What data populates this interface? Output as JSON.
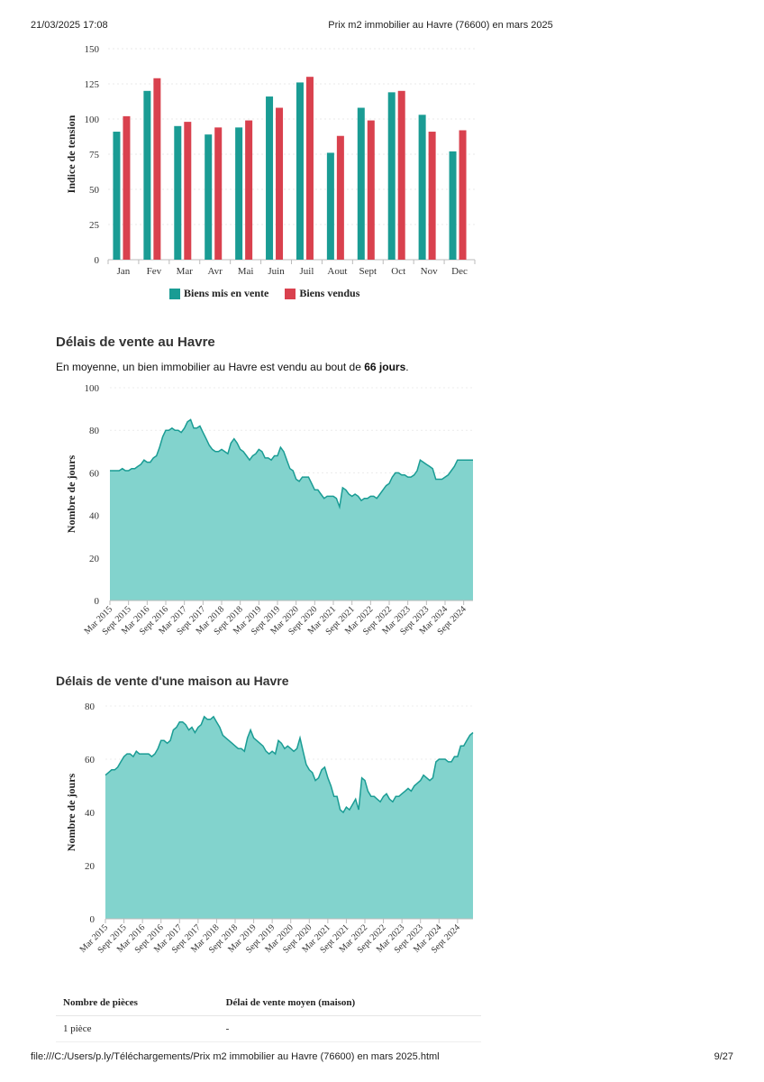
{
  "header": {
    "datetime": "21/03/2025 17:08",
    "title": "Prix m2 immobilier au Havre (76600) en mars 2025"
  },
  "footer": {
    "path": "file:///C:/Users/p.ly/Téléchargements/Prix m2 immobilier au Havre (76600) en mars 2025.html",
    "page": "9/27"
  },
  "section_delais": {
    "title": "Délais de vente au Havre",
    "text_before": "En moyenne, un bien immobilier au Havre est vendu au bout de ",
    "text_bold": "66 jours",
    "text_after": "."
  },
  "section_maison": {
    "title": "Délais de vente d'une maison au Havre"
  },
  "table": {
    "headers": [
      "Nombre de pièces",
      "Délai de vente moyen (maison)"
    ],
    "rows": [
      [
        "1 pièce",
        "-"
      ]
    ]
  },
  "legend": [
    {
      "label": "Biens mis en vente",
      "color": "#1a9c94"
    },
    {
      "label": "Biens vendus",
      "color": "#d9414e"
    }
  ],
  "chart_data": [
    {
      "type": "bar",
      "ylabel": "Indice de tension",
      "ylim": [
        0,
        150
      ],
      "yticks": [
        0,
        25,
        50,
        75,
        100,
        125,
        150
      ],
      "categories": [
        "Jan",
        "Fev",
        "Mar",
        "Avr",
        "Mai",
        "Juin",
        "Juil",
        "Aout",
        "Sept",
        "Oct",
        "Nov",
        "Dec"
      ],
      "series": [
        {
          "name": "Biens mis en vente",
          "color": "#1a9c94",
          "values": [
            91,
            120,
            95,
            89,
            94,
            116,
            126,
            76,
            108,
            119,
            103,
            77
          ]
        },
        {
          "name": "Biens vendus",
          "color": "#d9414e",
          "values": [
            102,
            129,
            98,
            94,
            99,
            108,
            130,
            88,
            99,
            120,
            91,
            92
          ]
        }
      ]
    },
    {
      "type": "area",
      "ylabel": "Nombre de jours",
      "ylim": [
        0,
        100
      ],
      "yticks": [
        0,
        20,
        40,
        60,
        80,
        100
      ],
      "color": "#1a9c94",
      "xticks": [
        "Mar 2015",
        "Sept 2015",
        "Mar 2016",
        "Sept 2016",
        "Mar 2017",
        "Sept 2017",
        "Mar 2018",
        "Sept 2018",
        "Mar 2019",
        "Sept 2019",
        "Mar 2020",
        "Sept 2020",
        "Mar 2021",
        "Sept 2021",
        "Mar 2022",
        "Sept 2022",
        "Mar 2023",
        "Sept 2023",
        "Mar 2024",
        "Sept 2024"
      ],
      "x": [
        "2015-03",
        "2015-04",
        "2015-05",
        "2015-06",
        "2015-07",
        "2015-08",
        "2015-09",
        "2015-10",
        "2015-11",
        "2015-12",
        "2016-01",
        "2016-02",
        "2016-03",
        "2016-04",
        "2016-05",
        "2016-06",
        "2016-07",
        "2016-08",
        "2016-09",
        "2016-10",
        "2016-11",
        "2016-12",
        "2017-01",
        "2017-02",
        "2017-03",
        "2017-04",
        "2017-05",
        "2017-06",
        "2017-07",
        "2017-08",
        "2017-09",
        "2017-10",
        "2017-11",
        "2017-12",
        "2018-01",
        "2018-02",
        "2018-03",
        "2018-04",
        "2018-05",
        "2018-06",
        "2018-07",
        "2018-08",
        "2018-09",
        "2018-10",
        "2018-11",
        "2018-12",
        "2019-01",
        "2019-02",
        "2019-03",
        "2019-04",
        "2019-05",
        "2019-06",
        "2019-07",
        "2019-08",
        "2019-09",
        "2019-10",
        "2019-11",
        "2019-12",
        "2020-01",
        "2020-02",
        "2020-03",
        "2020-04",
        "2020-05",
        "2020-06",
        "2020-07",
        "2020-08",
        "2020-09",
        "2020-10",
        "2020-11",
        "2020-12",
        "2021-01",
        "2021-02",
        "2021-03",
        "2021-04",
        "2021-05",
        "2021-06",
        "2021-07",
        "2021-08",
        "2021-09",
        "2021-10",
        "2021-11",
        "2021-12",
        "2022-01",
        "2022-02",
        "2022-03",
        "2022-04",
        "2022-05",
        "2022-06",
        "2022-07",
        "2022-08",
        "2022-09",
        "2022-10",
        "2022-11",
        "2022-12",
        "2023-01",
        "2023-02",
        "2023-03",
        "2023-04",
        "2023-05",
        "2023-06",
        "2023-07",
        "2023-08",
        "2023-09",
        "2023-10",
        "2023-11",
        "2023-12",
        "2024-01",
        "2024-02",
        "2024-03",
        "2024-04",
        "2024-05",
        "2024-06",
        "2024-07",
        "2024-08",
        "2024-09",
        "2024-10",
        "2024-11",
        "2024-12",
        "2025-01",
        "2025-02",
        "2025-03"
      ],
      "values": [
        61,
        61,
        61,
        61,
        62,
        61,
        61,
        62,
        62,
        63,
        64,
        66,
        65,
        65,
        67,
        68,
        72,
        77,
        80,
        80,
        81,
        80,
        80,
        79,
        81,
        84,
        85,
        81,
        81,
        82,
        79,
        76,
        73,
        71,
        70,
        70,
        71,
        70,
        69,
        74,
        76,
        74,
        71,
        70,
        68,
        66,
        68,
        69,
        71,
        70,
        67,
        67,
        66,
        68,
        68,
        72,
        70,
        66,
        62,
        61,
        57,
        56,
        58,
        58,
        58,
        55,
        52,
        52,
        50,
        48,
        49,
        49,
        49,
        48,
        44,
        53,
        52,
        50,
        49,
        50,
        49,
        47,
        48,
        48,
        49,
        49,
        48,
        50,
        52,
        54,
        55,
        58,
        60,
        60,
        59,
        59,
        58,
        58,
        59,
        61,
        66,
        65,
        64,
        63,
        62,
        57,
        57,
        57,
        58,
        59,
        61,
        63,
        66,
        66,
        66,
        66,
        66,
        66,
        66,
        66,
        66
      ],
      "n_shown": 118
    },
    {
      "type": "area",
      "ylabel": "Nombre de jours",
      "ylim": [
        0,
        80
      ],
      "yticks": [
        0,
        20,
        40,
        60,
        80
      ],
      "color": "#1a9c94",
      "xticks": [
        "Mar 2015",
        "Sept 2015",
        "Mar 2016",
        "Sept 2016",
        "Mar 2017",
        "Sept 2017",
        "Mar 2018",
        "Sept 2018",
        "Mar 2019",
        "Sept 2019",
        "Mar 2020",
        "Sept 2020",
        "Mar 2021",
        "Sept 2021",
        "Mar 2022",
        "Sept 2022",
        "Mar 2023",
        "Sept 2023",
        "Mar 2024",
        "Sept 2024"
      ],
      "values": [
        54,
        55,
        56,
        56,
        57,
        59,
        61,
        62,
        62,
        61,
        63,
        62,
        62,
        62,
        62,
        61,
        62,
        64,
        67,
        67,
        66,
        67,
        71,
        72,
        74,
        74,
        73,
        71,
        72,
        70,
        72,
        73,
        76,
        75,
        75,
        76,
        74,
        72,
        69,
        68,
        67,
        66,
        65,
        64,
        64,
        63,
        68,
        71,
        68,
        67,
        66,
        65,
        63,
        62,
        63,
        62,
        67,
        66,
        64,
        65,
        64,
        63,
        64,
        68,
        63,
        58,
        56,
        55,
        52,
        53,
        56,
        57,
        53,
        50,
        46,
        46,
        41,
        40,
        42,
        41,
        43,
        45,
        41,
        53,
        52,
        48,
        46,
        46,
        45,
        44,
        46,
        47,
        45,
        44,
        46,
        46,
        47,
        48,
        49,
        48,
        50,
        51,
        52,
        54,
        53,
        52,
        53,
        59,
        60,
        60,
        60,
        59,
        59,
        61,
        61,
        65,
        65,
        67,
        69,
        70
      ],
      "n_shown": 120
    }
  ]
}
